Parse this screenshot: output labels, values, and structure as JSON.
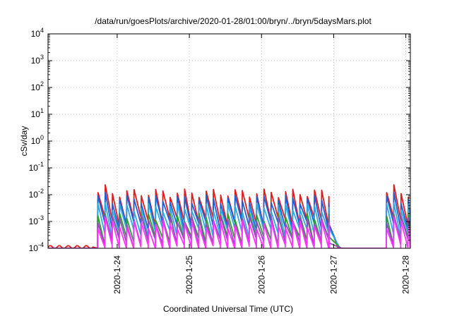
{
  "chart_data": {
    "type": "line",
    "title": "/data/run/goesPlots/archive/2020-01-28/01:00/bryn/../bryn/5daysMars.plot",
    "xlabel": "Coordinated Universal Time (UTC)",
    "ylabel": "cSv/day",
    "yscale": "log",
    "ylim": [
      0.0001,
      10000
    ],
    "xlim": [
      "2020-01-23T01:00",
      "2020-01-28T01:30"
    ],
    "grid": true,
    "y_ticks": [
      {
        "base": "10",
        "exp": "-4"
      },
      {
        "base": "10",
        "exp": "-3"
      },
      {
        "base": "10",
        "exp": "-2"
      },
      {
        "base": "10",
        "exp": "-1"
      },
      {
        "base": "10",
        "exp": "0"
      },
      {
        "base": "10",
        "exp": "1"
      },
      {
        "base": "10",
        "exp": "2"
      },
      {
        "base": "10",
        "exp": "3"
      },
      {
        "base": "10",
        "exp": "4"
      }
    ],
    "x_ticks": [
      {
        "label": "2020-1-24",
        "x": "2020-01-24T00:00"
      },
      {
        "label": "2020-1-25",
        "x": "2020-01-25T00:00"
      },
      {
        "label": "2020-1-26",
        "x": "2020-01-26T00:00"
      },
      {
        "label": "2020-1-27",
        "x": "2020-01-27T00:00"
      },
      {
        "label": "2020-1-28",
        "x": "2020-01-28T00:00"
      }
    ],
    "series": [
      {
        "color": "#e31a1c",
        "peak_level": 0.012,
        "decay_level": 0.0013,
        "early_level": 0.00011
      },
      {
        "color": "#1f5fd6",
        "peak_level": 0.007,
        "decay_level": 0.0009
      },
      {
        "color": "#2ea8e0",
        "peak_level": 0.0035,
        "decay_level": 0.0005
      },
      {
        "color": "#2ca02c",
        "peak_level": 0.0015,
        "decay_level": 0.00025
      },
      {
        "color": "#8e4fb8",
        "peak_level": 0.0012,
        "decay_level": 0.0002
      },
      {
        "color": "#ff33ff",
        "peak_level": 0.0008,
        "decay_level": 0.00012
      }
    ],
    "activity_segments": [
      {
        "start": "2020-01-23T17:30",
        "end": "2020-01-26T22:30",
        "period_hours": 2.4
      },
      {
        "start": "2020-01-27T17:30",
        "end": "2020-01-28T01:30",
        "period_hours": 2.4
      }
    ]
  }
}
